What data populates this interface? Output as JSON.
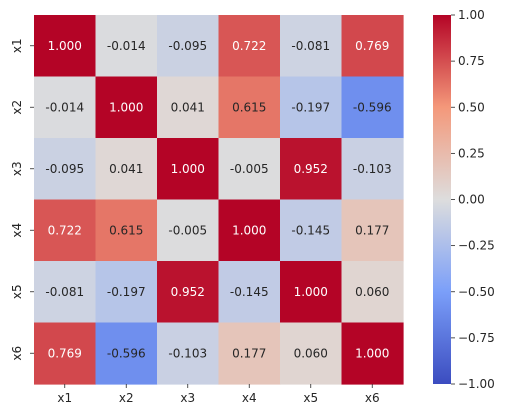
{
  "chart_data": {
    "type": "heatmap",
    "x_labels": [
      "x1",
      "x2",
      "x3",
      "x4",
      "x5",
      "x6"
    ],
    "y_labels": [
      "x1",
      "x2",
      "x3",
      "x4",
      "x5",
      "x6"
    ],
    "values": [
      [
        1.0,
        -0.014,
        -0.095,
        0.722,
        -0.081,
        0.769
      ],
      [
        -0.014,
        1.0,
        0.041,
        0.615,
        -0.197,
        -0.596
      ],
      [
        -0.095,
        0.041,
        1.0,
        -0.005,
        0.952,
        -0.103
      ],
      [
        0.722,
        0.615,
        -0.005,
        1.0,
        -0.145,
        0.177
      ],
      [
        -0.081,
        -0.197,
        0.952,
        -0.145,
        1.0,
        0.06
      ],
      [
        0.769,
        -0.596,
        -0.103,
        0.177,
        0.06,
        1.0
      ]
    ],
    "value_format": "0.000",
    "colormap": "coolwarm",
    "vmin": -1.0,
    "vmax": 1.0,
    "colorbar_ticks": [
      "1.00",
      "0.75",
      "0.50",
      "0.25",
      "0.00",
      "−0.25",
      "−0.50",
      "−0.75",
      "−1.00"
    ],
    "colorbar_tick_values": [
      1.0,
      0.75,
      0.5,
      0.25,
      0.0,
      -0.25,
      -0.5,
      -0.75,
      -1.0
    ],
    "title": "",
    "xlabel": "",
    "ylabel": "",
    "colors": {
      "low": "#3b4cc0",
      "mid": "#dddddd",
      "high": "#b40426",
      "text_light": "#ffffff",
      "text_dark": "#262626",
      "tick": "#262626"
    }
  }
}
